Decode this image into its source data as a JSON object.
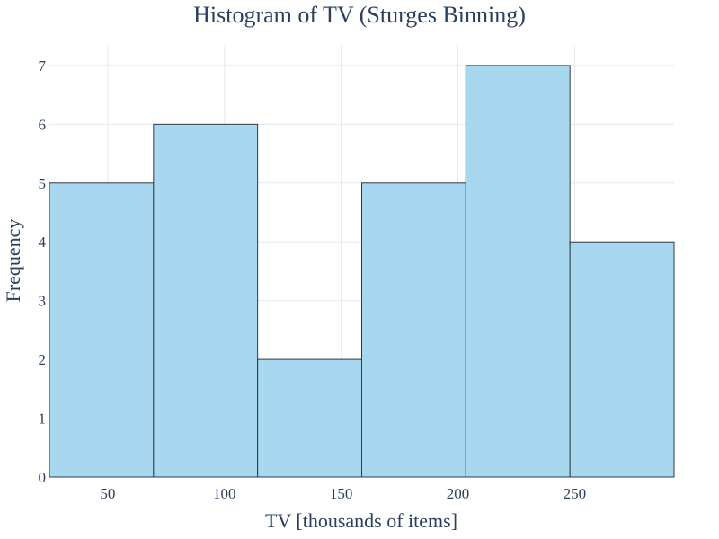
{
  "chart_data": {
    "type": "bar",
    "title": "Histogram of TV (Sturges Binning)",
    "xlabel": "TV [thousands of items]",
    "ylabel": "Frequency",
    "bins": [
      {
        "x0": 25,
        "x1": 69.6,
        "count": 5
      },
      {
        "x0": 69.6,
        "x1": 114.2,
        "count": 6
      },
      {
        "x0": 114.2,
        "x1": 158.8,
        "count": 2
      },
      {
        "x0": 158.8,
        "x1": 203.4,
        "count": 5
      },
      {
        "x0": 203.4,
        "x1": 248.0,
        "count": 7
      },
      {
        "x0": 248.0,
        "x1": 292.6,
        "count": 4
      }
    ],
    "xlim": [
      25,
      292.6
    ],
    "ylim": [
      0,
      7.35
    ],
    "xticks": [
      50,
      100,
      150,
      200,
      250
    ],
    "yticks": [
      0,
      1,
      2,
      3,
      4,
      5,
      6,
      7
    ],
    "grid": true,
    "bar_color": "#a7d8f0",
    "bar_edge_color": "#2f3a40"
  }
}
